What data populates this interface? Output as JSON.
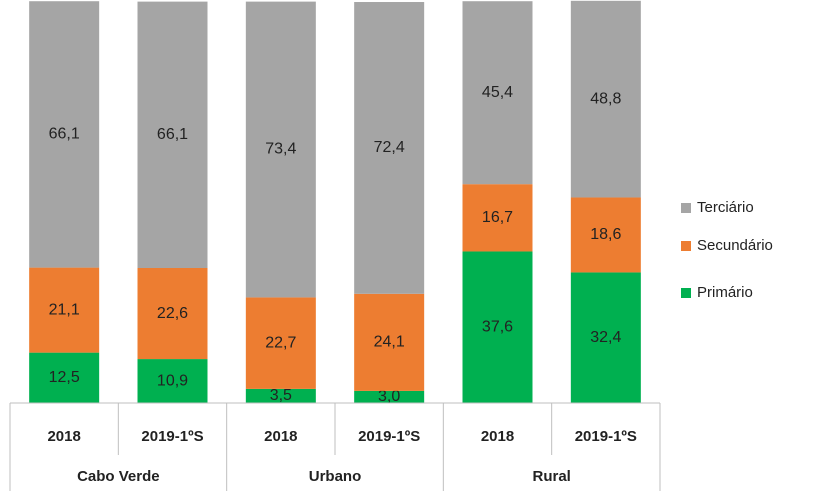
{
  "chart_data": {
    "type": "stacked_bar",
    "categories": [
      "2018",
      "2019-1ºS",
      "2018",
      "2019-1ºS",
      "2018",
      "2019-1ºS"
    ],
    "groups": [
      "Cabo Verde",
      "Urbano",
      "Rural"
    ],
    "series": [
      {
        "name": "Primário",
        "color": "#00b050",
        "values": [
          12.5,
          10.9,
          3.5,
          3.0,
          37.6,
          32.4
        ],
        "value_labels": [
          "12,5",
          "10,9",
          "3,5",
          "3,0",
          "37,6",
          "32,4"
        ]
      },
      {
        "name": "Secundário",
        "color": "#ed7d31",
        "values": [
          21.1,
          22.6,
          22.7,
          24.1,
          16.7,
          18.6
        ],
        "value_labels": [
          "21,1",
          "22,6",
          "22,7",
          "24,1",
          "16,7",
          "18,6"
        ]
      },
      {
        "name": "Terciário",
        "color": "#a5a5a5",
        "values": [
          66.1,
          66.1,
          73.4,
          72.4,
          45.4,
          48.8
        ],
        "value_labels": [
          "66,1",
          "66,1",
          "73,4",
          "72,4",
          "45,4",
          "48,8"
        ]
      }
    ],
    "ylim": [
      0,
      100
    ],
    "legend": "right"
  }
}
